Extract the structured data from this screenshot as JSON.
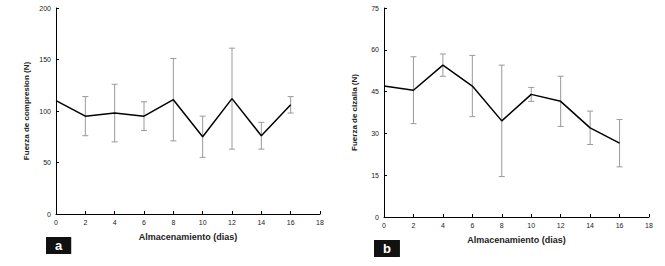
{
  "chart_data": [
    {
      "type": "line",
      "panel_label": "a",
      "x_label": "Almacenamiento (dias)",
      "y_label": "Fuerza de compresion (N)",
      "x": [
        0,
        2,
        4,
        6,
        8,
        10,
        12,
        14,
        16
      ],
      "values": [
        110,
        95,
        98,
        95,
        111,
        75,
        112,
        76,
        106
      ],
      "errors": [
        null,
        19,
        28,
        14,
        40,
        20,
        49,
        13,
        8
      ],
      "color": "#000000",
      "xlim": [
        0,
        18
      ],
      "xticks": [
        0,
        2,
        4,
        6,
        8,
        10,
        12,
        14,
        16,
        18
      ],
      "ylim": [
        0,
        200
      ],
      "yticks": [
        0,
        50,
        100,
        150,
        200
      ],
      "grid": false
    },
    {
      "type": "line",
      "panel_label": "b",
      "x_label": "Almacenamiento (dias)",
      "y_label": "Fuerza de cizalla (N)",
      "x": [
        0,
        2,
        4,
        6,
        8,
        10,
        12,
        14,
        16
      ],
      "values": [
        47,
        45.5,
        54.5,
        47,
        34.5,
        44,
        41.5,
        32,
        26.5
      ],
      "errors": [
        null,
        12,
        4,
        11,
        20,
        2.5,
        9,
        6,
        8.5
      ],
      "color": "#000000",
      "xlim": [
        0,
        18
      ],
      "xticks": [
        0,
        2,
        4,
        6,
        8,
        10,
        12,
        14,
        16,
        18
      ],
      "ylim": [
        0,
        75
      ],
      "yticks": [
        0,
        15,
        30,
        45,
        60,
        75
      ],
      "grid": false
    }
  ]
}
